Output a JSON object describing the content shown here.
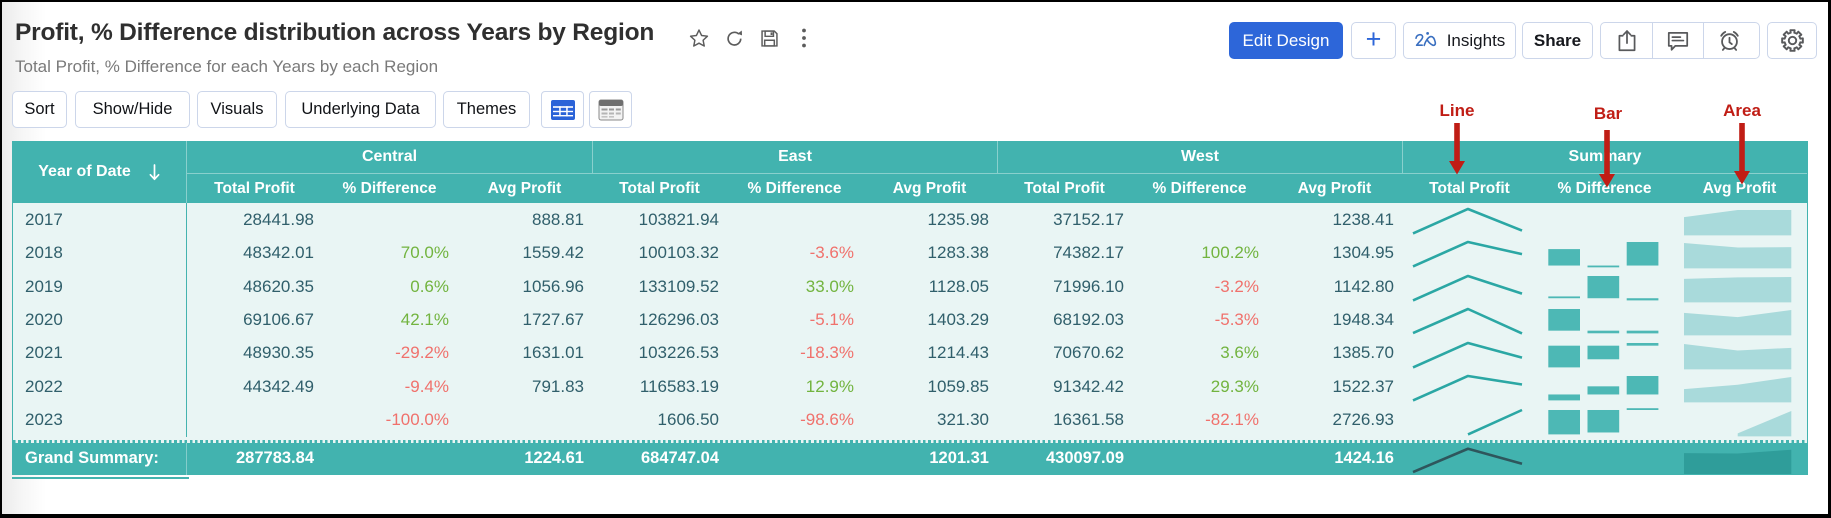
{
  "colors": {
    "teal": "#42b3af",
    "bodyBg": "#e9f5f4",
    "colBorder": "#44b3af",
    "textDark": "#305f6b",
    "green": "#72b43f",
    "red": "#f0716c",
    "anno": "#c01d15",
    "blue": "#2d66d9",
    "btnBorder": "#ccd6ea",
    "iconGray": "#58595b",
    "title": "#2f2f2f",
    "subtitle": "#7a7a7a",
    "sparkLine": "#2ba7a4",
    "sparkBar": "#4db8b5",
    "sparkArea": "#a9dadb",
    "grandLine": "#2e565c",
    "grandArea": "#2f9d9a"
  },
  "header": {
    "title": "Profit, % Difference distribution across Years by Region",
    "subtitle": "Total Profit, % Difference for each Years by each Region",
    "actions": {
      "edit_design": "Edit Design",
      "add": "+",
      "insights": "Insights",
      "share": "Share"
    }
  },
  "toolbar": {
    "sort": "Sort",
    "show_hide": "Show/Hide",
    "visuals": "Visuals",
    "underlying_data": "Underlying Data",
    "themes": "Themes"
  },
  "annotations": {
    "line": "Line",
    "bar": "Bar",
    "area": "Area"
  },
  "table": {
    "row_dim": "Year of Date",
    "groups": [
      "Central",
      "East",
      "West",
      "Summary"
    ],
    "measures": [
      "Total Profit",
      "% Difference",
      "Avg Profit"
    ],
    "grand_label": "Grand Summary:",
    "rows": [
      {
        "year": "2017",
        "central": {
          "total": "28441.98",
          "diff": "",
          "avg": "888.81"
        },
        "east": {
          "total": "103821.94",
          "diff": "",
          "avg": "1235.98"
        },
        "west": {
          "total": "37152.17",
          "diff": "",
          "avg": "1238.41"
        }
      },
      {
        "year": "2018",
        "central": {
          "total": "48342.01",
          "diff": "70.0%",
          "avg": "1559.42"
        },
        "east": {
          "total": "100103.32",
          "diff": "-3.6%",
          "avg": "1283.38"
        },
        "west": {
          "total": "74382.17",
          "diff": "100.2%",
          "avg": "1304.95"
        }
      },
      {
        "year": "2019",
        "central": {
          "total": "48620.35",
          "diff": "0.6%",
          "avg": "1056.96"
        },
        "east": {
          "total": "133109.52",
          "diff": "33.0%",
          "avg": "1128.05"
        },
        "west": {
          "total": "71996.10",
          "diff": "-3.2%",
          "avg": "1142.80"
        }
      },
      {
        "year": "2020",
        "central": {
          "total": "69106.67",
          "diff": "42.1%",
          "avg": "1727.67"
        },
        "east": {
          "total": "126296.03",
          "diff": "-5.1%",
          "avg": "1403.29"
        },
        "west": {
          "total": "68192.03",
          "diff": "-5.3%",
          "avg": "1948.34"
        }
      },
      {
        "year": "2021",
        "central": {
          "total": "48930.35",
          "diff": "-29.2%",
          "avg": "1631.01"
        },
        "east": {
          "total": "103226.53",
          "diff": "-18.3%",
          "avg": "1214.43"
        },
        "west": {
          "total": "70670.62",
          "diff": "3.6%",
          "avg": "1385.70"
        }
      },
      {
        "year": "2022",
        "central": {
          "total": "44342.49",
          "diff": "-9.4%",
          "avg": "791.83"
        },
        "east": {
          "total": "116583.19",
          "diff": "12.9%",
          "avg": "1059.85"
        },
        "west": {
          "total": "91342.42",
          "diff": "29.3%",
          "avg": "1522.37"
        }
      },
      {
        "year": "2023",
        "central": {
          "total": "",
          "diff": "-100.0%",
          "avg": ""
        },
        "east": {
          "total": "1606.50",
          "diff": "-98.6%",
          "avg": "321.30"
        },
        "west": {
          "total": "16361.58",
          "diff": "-82.1%",
          "avg": "2726.93"
        }
      }
    ],
    "grand": {
      "central": {
        "total": "287783.84",
        "diff": "",
        "avg": "1224.61"
      },
      "east": {
        "total": "684747.04",
        "diff": "",
        "avg": "1201.31"
      },
      "west": {
        "total": "430097.09",
        "diff": "",
        "avg": "1424.16"
      }
    }
  },
  "chart_data": [
    {
      "type": "line",
      "title": "Summary - Total Profit sparklines",
      "x": [
        "Central",
        "East",
        "West"
      ],
      "series": [
        {
          "name": "2017",
          "values": [
            28441.98,
            103821.94,
            37152.17
          ]
        },
        {
          "name": "2018",
          "values": [
            48342.01,
            100103.32,
            74382.17
          ]
        },
        {
          "name": "2019",
          "values": [
            48620.35,
            133109.52,
            71996.1
          ]
        },
        {
          "name": "2020",
          "values": [
            69106.67,
            126296.03,
            68192.03
          ]
        },
        {
          "name": "2021",
          "values": [
            48930.35,
            103226.53,
            70670.62
          ]
        },
        {
          "name": "2022",
          "values": [
            44342.49,
            116583.19,
            91342.42
          ]
        },
        {
          "name": "2023",
          "values": [
            null,
            1606.5,
            16361.58
          ]
        },
        {
          "name": "Grand Summary",
          "values": [
            287783.84,
            684747.04,
            430097.09
          ]
        }
      ]
    },
    {
      "type": "bar",
      "title": "Summary - % Difference sparklines",
      "x": [
        "Central",
        "East",
        "West"
      ],
      "series": [
        {
          "name": "2017",
          "values": [
            null,
            null,
            null
          ]
        },
        {
          "name": "2018",
          "values": [
            70.0,
            -3.6,
            100.2
          ]
        },
        {
          "name": "2019",
          "values": [
            0.6,
            33.0,
            -3.2
          ]
        },
        {
          "name": "2020",
          "values": [
            42.1,
            -5.1,
            -5.3
          ]
        },
        {
          "name": "2021",
          "values": [
            -29.2,
            -18.3,
            3.6
          ]
        },
        {
          "name": "2022",
          "values": [
            -9.4,
            12.9,
            29.3
          ]
        },
        {
          "name": "2023",
          "values": [
            -100.0,
            -98.6,
            -82.1
          ]
        },
        {
          "name": "Grand Summary",
          "values": [
            null,
            null,
            null
          ]
        }
      ]
    },
    {
      "type": "area",
      "title": "Summary - Avg Profit sparklines",
      "x": [
        "Central",
        "East",
        "West"
      ],
      "series": [
        {
          "name": "2017",
          "values": [
            888.81,
            1235.98,
            1238.41
          ]
        },
        {
          "name": "2018",
          "values": [
            1559.42,
            1283.38,
            1304.95
          ]
        },
        {
          "name": "2019",
          "values": [
            1056.96,
            1128.05,
            1142.8
          ]
        },
        {
          "name": "2020",
          "values": [
            1727.67,
            1403.29,
            1948.34
          ]
        },
        {
          "name": "2021",
          "values": [
            1631.01,
            1214.43,
            1385.7
          ]
        },
        {
          "name": "2022",
          "values": [
            791.83,
            1059.85,
            1522.37
          ]
        },
        {
          "name": "2023",
          "values": [
            null,
            321.3,
            2726.93
          ]
        },
        {
          "name": "Grand Summary",
          "values": [
            1224.61,
            1201.31,
            1424.16
          ]
        }
      ]
    }
  ]
}
